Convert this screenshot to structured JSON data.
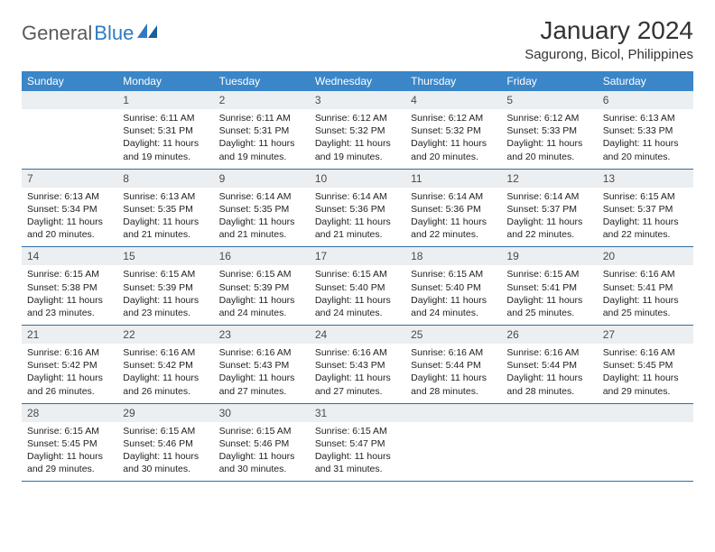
{
  "logo": {
    "text1": "General",
    "text2": "Blue"
  },
  "title": "January 2024",
  "location": "Sagurong, Bicol, Philippines",
  "colors": {
    "header_bg": "#3a86c8",
    "daynum_bg": "#eceff1",
    "border": "#2f6ea8",
    "logo_gray": "#5a5a5a",
    "logo_blue": "#2f7bbf"
  },
  "weekdays": [
    "Sunday",
    "Monday",
    "Tuesday",
    "Wednesday",
    "Thursday",
    "Friday",
    "Saturday"
  ],
  "weeks": [
    {
      "nums": [
        "",
        "1",
        "2",
        "3",
        "4",
        "5",
        "6"
      ],
      "cells": [
        null,
        {
          "sunrise": "Sunrise: 6:11 AM",
          "sunset": "Sunset: 5:31 PM",
          "day1": "Daylight: 11 hours",
          "day2": "and 19 minutes."
        },
        {
          "sunrise": "Sunrise: 6:11 AM",
          "sunset": "Sunset: 5:31 PM",
          "day1": "Daylight: 11 hours",
          "day2": "and 19 minutes."
        },
        {
          "sunrise": "Sunrise: 6:12 AM",
          "sunset": "Sunset: 5:32 PM",
          "day1": "Daylight: 11 hours",
          "day2": "and 19 minutes."
        },
        {
          "sunrise": "Sunrise: 6:12 AM",
          "sunset": "Sunset: 5:32 PM",
          "day1": "Daylight: 11 hours",
          "day2": "and 20 minutes."
        },
        {
          "sunrise": "Sunrise: 6:12 AM",
          "sunset": "Sunset: 5:33 PM",
          "day1": "Daylight: 11 hours",
          "day2": "and 20 minutes."
        },
        {
          "sunrise": "Sunrise: 6:13 AM",
          "sunset": "Sunset: 5:33 PM",
          "day1": "Daylight: 11 hours",
          "day2": "and 20 minutes."
        }
      ]
    },
    {
      "nums": [
        "7",
        "8",
        "9",
        "10",
        "11",
        "12",
        "13"
      ],
      "cells": [
        {
          "sunrise": "Sunrise: 6:13 AM",
          "sunset": "Sunset: 5:34 PM",
          "day1": "Daylight: 11 hours",
          "day2": "and 20 minutes."
        },
        {
          "sunrise": "Sunrise: 6:13 AM",
          "sunset": "Sunset: 5:35 PM",
          "day1": "Daylight: 11 hours",
          "day2": "and 21 minutes."
        },
        {
          "sunrise": "Sunrise: 6:14 AM",
          "sunset": "Sunset: 5:35 PM",
          "day1": "Daylight: 11 hours",
          "day2": "and 21 minutes."
        },
        {
          "sunrise": "Sunrise: 6:14 AM",
          "sunset": "Sunset: 5:36 PM",
          "day1": "Daylight: 11 hours",
          "day2": "and 21 minutes."
        },
        {
          "sunrise": "Sunrise: 6:14 AM",
          "sunset": "Sunset: 5:36 PM",
          "day1": "Daylight: 11 hours",
          "day2": "and 22 minutes."
        },
        {
          "sunrise": "Sunrise: 6:14 AM",
          "sunset": "Sunset: 5:37 PM",
          "day1": "Daylight: 11 hours",
          "day2": "and 22 minutes."
        },
        {
          "sunrise": "Sunrise: 6:15 AM",
          "sunset": "Sunset: 5:37 PM",
          "day1": "Daylight: 11 hours",
          "day2": "and 22 minutes."
        }
      ]
    },
    {
      "nums": [
        "14",
        "15",
        "16",
        "17",
        "18",
        "19",
        "20"
      ],
      "cells": [
        {
          "sunrise": "Sunrise: 6:15 AM",
          "sunset": "Sunset: 5:38 PM",
          "day1": "Daylight: 11 hours",
          "day2": "and 23 minutes."
        },
        {
          "sunrise": "Sunrise: 6:15 AM",
          "sunset": "Sunset: 5:39 PM",
          "day1": "Daylight: 11 hours",
          "day2": "and 23 minutes."
        },
        {
          "sunrise": "Sunrise: 6:15 AM",
          "sunset": "Sunset: 5:39 PM",
          "day1": "Daylight: 11 hours",
          "day2": "and 24 minutes."
        },
        {
          "sunrise": "Sunrise: 6:15 AM",
          "sunset": "Sunset: 5:40 PM",
          "day1": "Daylight: 11 hours",
          "day2": "and 24 minutes."
        },
        {
          "sunrise": "Sunrise: 6:15 AM",
          "sunset": "Sunset: 5:40 PM",
          "day1": "Daylight: 11 hours",
          "day2": "and 24 minutes."
        },
        {
          "sunrise": "Sunrise: 6:15 AM",
          "sunset": "Sunset: 5:41 PM",
          "day1": "Daylight: 11 hours",
          "day2": "and 25 minutes."
        },
        {
          "sunrise": "Sunrise: 6:16 AM",
          "sunset": "Sunset: 5:41 PM",
          "day1": "Daylight: 11 hours",
          "day2": "and 25 minutes."
        }
      ]
    },
    {
      "nums": [
        "21",
        "22",
        "23",
        "24",
        "25",
        "26",
        "27"
      ],
      "cells": [
        {
          "sunrise": "Sunrise: 6:16 AM",
          "sunset": "Sunset: 5:42 PM",
          "day1": "Daylight: 11 hours",
          "day2": "and 26 minutes."
        },
        {
          "sunrise": "Sunrise: 6:16 AM",
          "sunset": "Sunset: 5:42 PM",
          "day1": "Daylight: 11 hours",
          "day2": "and 26 minutes."
        },
        {
          "sunrise": "Sunrise: 6:16 AM",
          "sunset": "Sunset: 5:43 PM",
          "day1": "Daylight: 11 hours",
          "day2": "and 27 minutes."
        },
        {
          "sunrise": "Sunrise: 6:16 AM",
          "sunset": "Sunset: 5:43 PM",
          "day1": "Daylight: 11 hours",
          "day2": "and 27 minutes."
        },
        {
          "sunrise": "Sunrise: 6:16 AM",
          "sunset": "Sunset: 5:44 PM",
          "day1": "Daylight: 11 hours",
          "day2": "and 28 minutes."
        },
        {
          "sunrise": "Sunrise: 6:16 AM",
          "sunset": "Sunset: 5:44 PM",
          "day1": "Daylight: 11 hours",
          "day2": "and 28 minutes."
        },
        {
          "sunrise": "Sunrise: 6:16 AM",
          "sunset": "Sunset: 5:45 PM",
          "day1": "Daylight: 11 hours",
          "day2": "and 29 minutes."
        }
      ]
    },
    {
      "nums": [
        "28",
        "29",
        "30",
        "31",
        "",
        "",
        ""
      ],
      "cells": [
        {
          "sunrise": "Sunrise: 6:15 AM",
          "sunset": "Sunset: 5:45 PM",
          "day1": "Daylight: 11 hours",
          "day2": "and 29 minutes."
        },
        {
          "sunrise": "Sunrise: 6:15 AM",
          "sunset": "Sunset: 5:46 PM",
          "day1": "Daylight: 11 hours",
          "day2": "and 30 minutes."
        },
        {
          "sunrise": "Sunrise: 6:15 AM",
          "sunset": "Sunset: 5:46 PM",
          "day1": "Daylight: 11 hours",
          "day2": "and 30 minutes."
        },
        {
          "sunrise": "Sunrise: 6:15 AM",
          "sunset": "Sunset: 5:47 PM",
          "day1": "Daylight: 11 hours",
          "day2": "and 31 minutes."
        },
        null,
        null,
        null
      ]
    }
  ]
}
